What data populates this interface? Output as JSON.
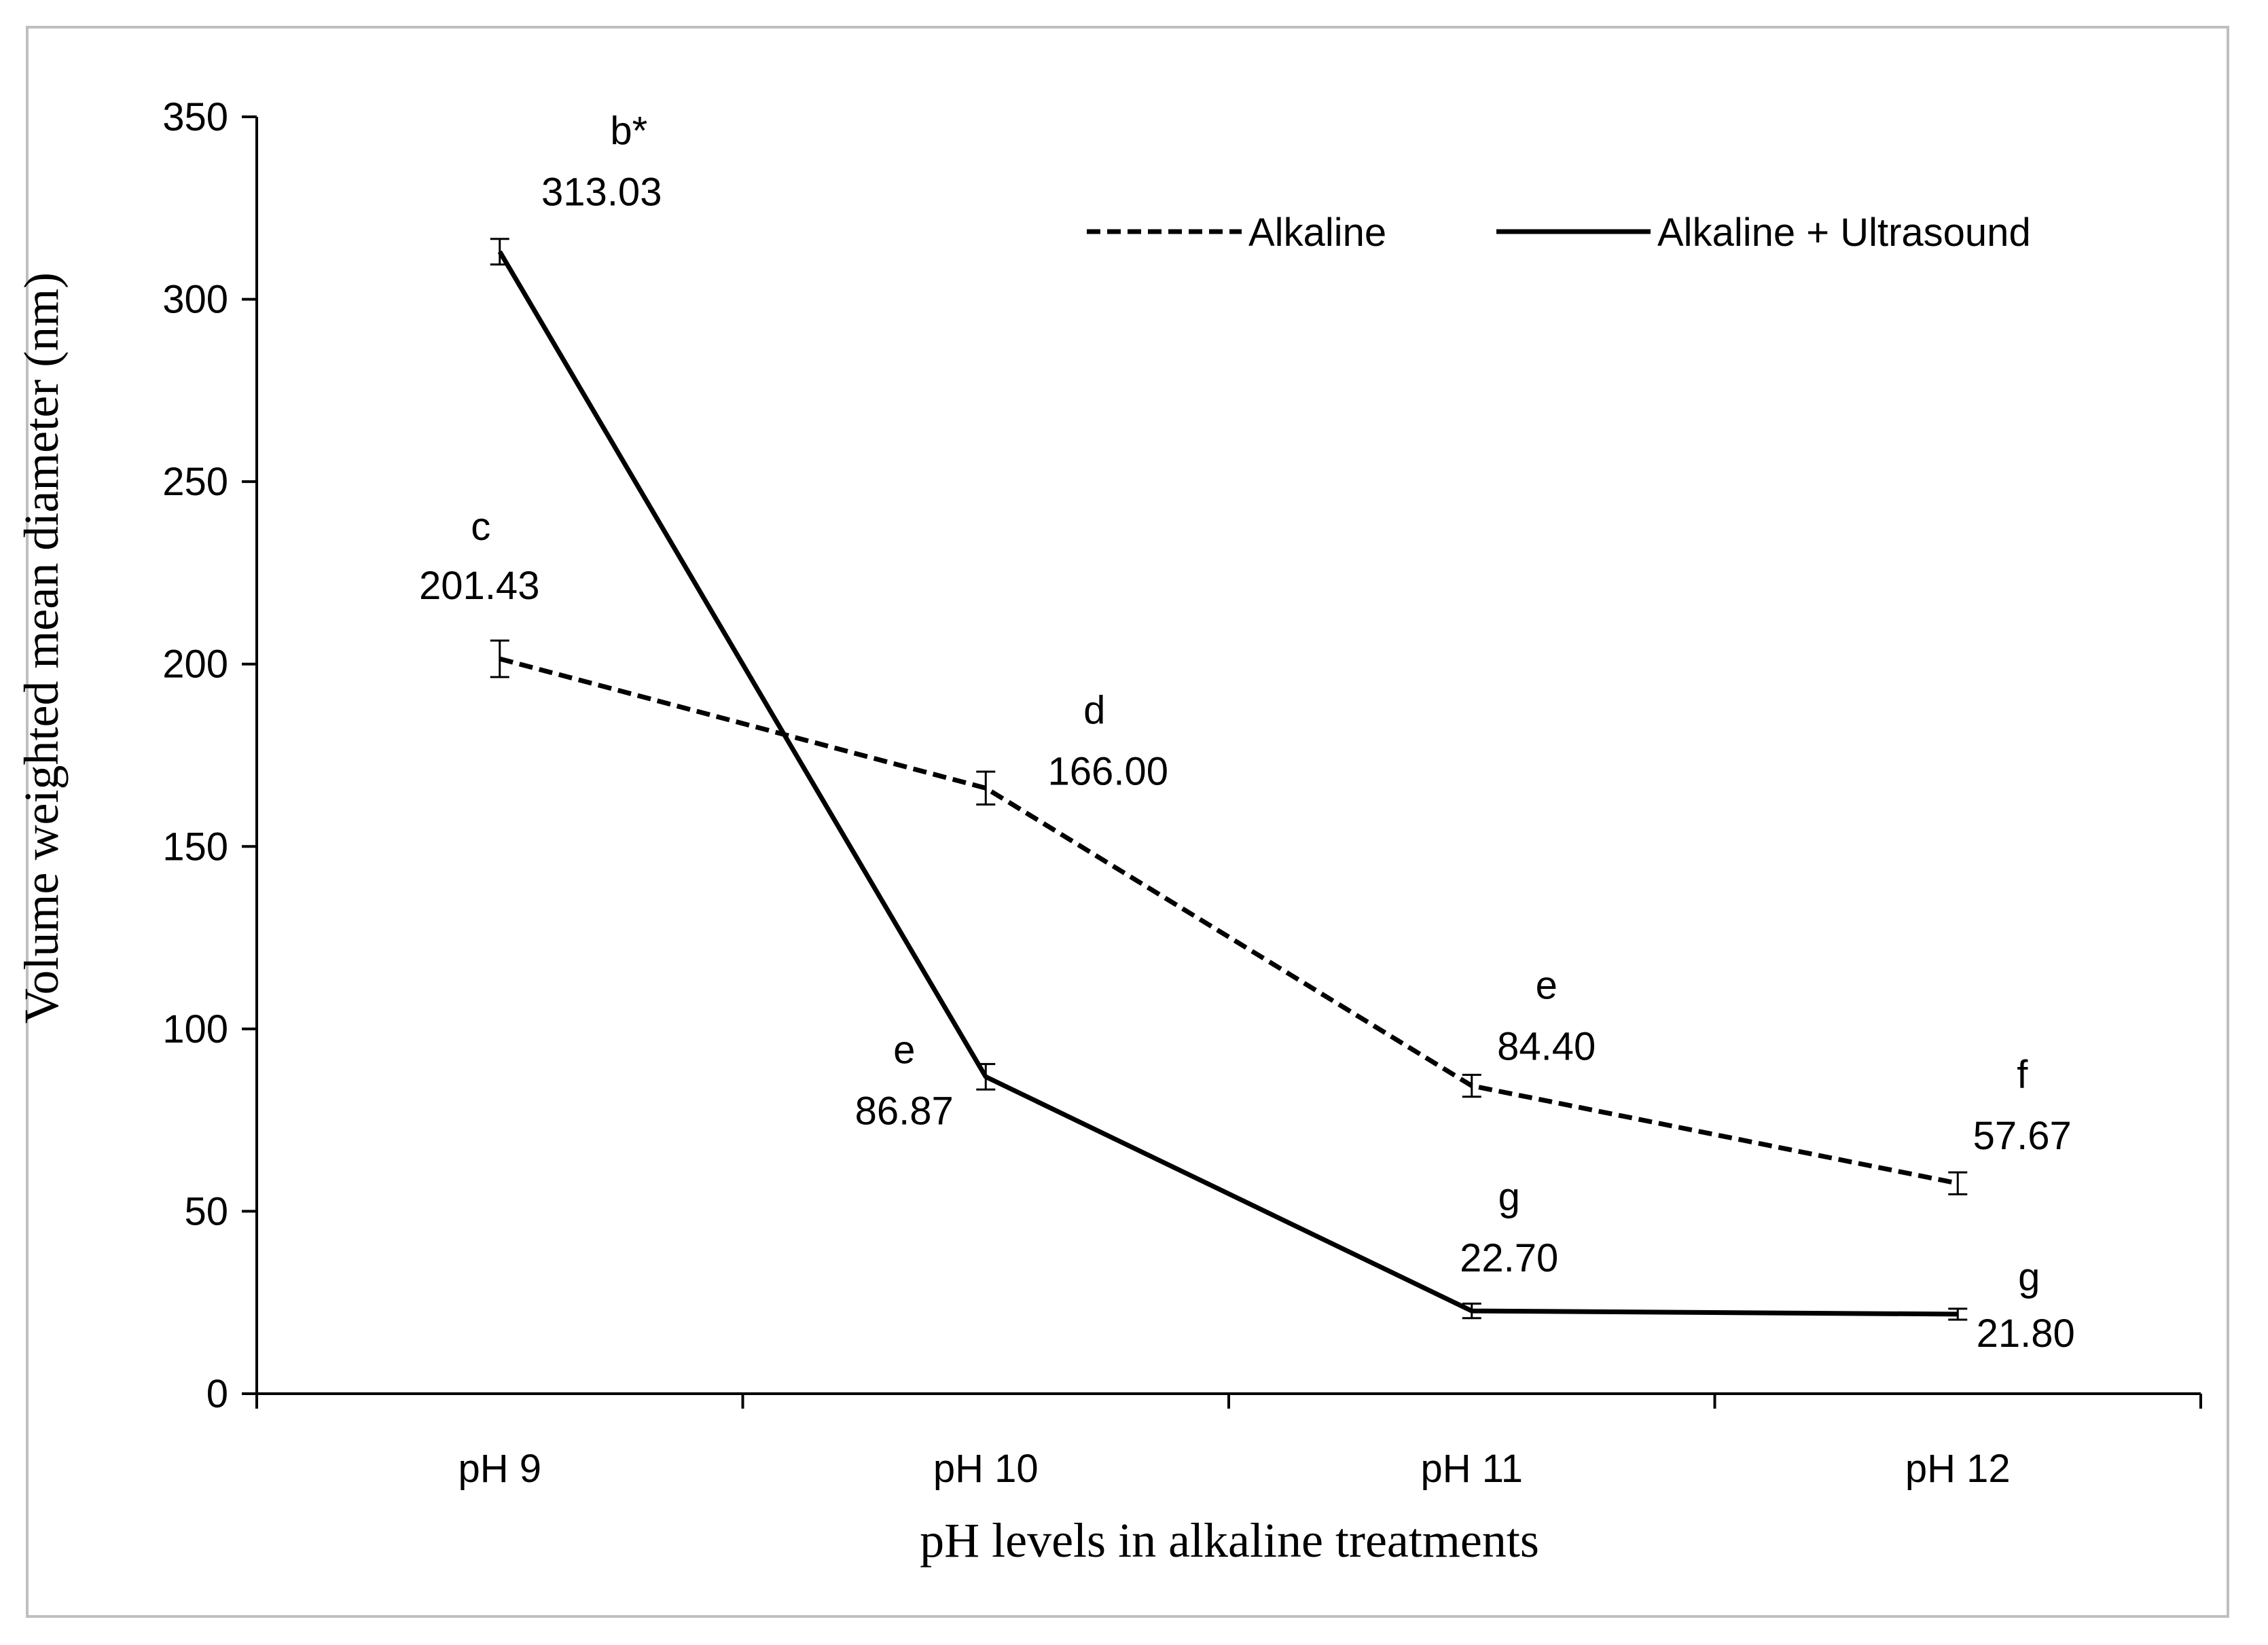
{
  "chart_data": {
    "type": "line",
    "categories": [
      "pH 9",
      "pH 10",
      "pH 11",
      "pH 12"
    ],
    "xlabel": "pH levels in alkaline treatments",
    "ylabel": "Volume weighted mean diameter (nm)",
    "ylim": [
      0,
      350
    ],
    "yticks": [
      0,
      50,
      100,
      150,
      200,
      250,
      300,
      350
    ],
    "grid": false,
    "legend_position": "top-right",
    "series": [
      {
        "name": "Alkaline",
        "style": "dashed",
        "color": "#000000",
        "values": [
          201.43,
          166.0,
          84.4,
          57.67
        ],
        "value_labels": [
          "201.43",
          "166.00",
          "84.40",
          "57.67"
        ],
        "letters": [
          "c",
          "d",
          "e",
          "f"
        ],
        "errors": [
          5,
          4.5,
          3,
          3
        ]
      },
      {
        "name": "Alkaline + Ultrasound",
        "style": "solid",
        "color": "#000000",
        "values": [
          313.03,
          86.87,
          22.7,
          21.8
        ],
        "value_labels": [
          "313.03",
          "86.87",
          "22.70",
          "21.80"
        ],
        "letters": [
          "b*",
          "e",
          "g",
          "g"
        ],
        "errors": [
          3.5,
          3.5,
          2,
          1.5
        ]
      }
    ]
  }
}
